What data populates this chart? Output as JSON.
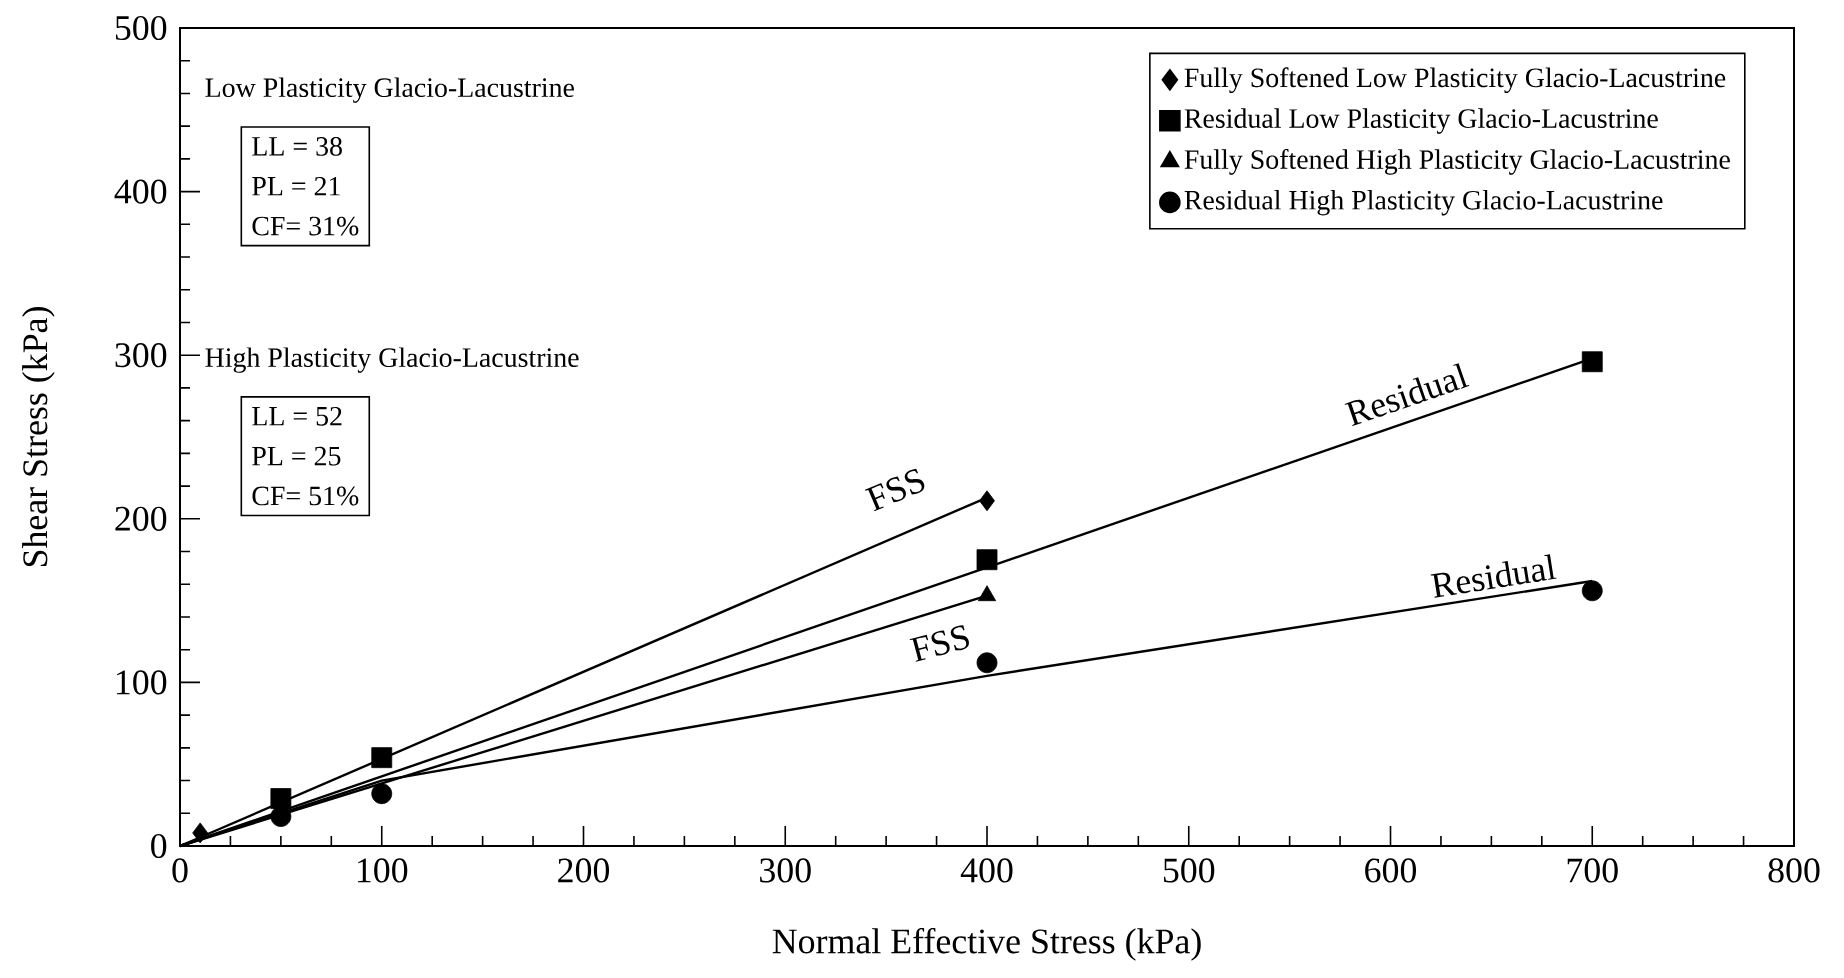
{
  "chart_data": {
    "type": "scatter",
    "xlabel": "Normal Effective Stress (kPa)",
    "ylabel": "Shear Stress (kPa)",
    "xlim": [
      0,
      800
    ],
    "ylim": [
      0,
      500
    ],
    "xticks": [
      0,
      100,
      200,
      300,
      400,
      500,
      600,
      700,
      800
    ],
    "yticks": [
      0,
      100,
      200,
      300,
      400,
      500
    ],
    "legend": "top right",
    "grid": false,
    "series": [
      {
        "type": "line",
        "marker": "none",
        "color": "#000000",
        "x": [
          0,
          400
        ],
        "values": [
          0,
          213
        ]
      },
      {
        "type": "line",
        "marker": "none",
        "color": "#000000",
        "x": [
          0,
          700
        ],
        "values": [
          0,
          298
        ]
      },
      {
        "type": "line",
        "marker": "none",
        "color": "#000000",
        "x": [
          0,
          400
        ],
        "values": [
          0,
          153
        ]
      },
      {
        "type": "line",
        "marker": "none",
        "color": "#000000",
        "x": [
          0,
          100,
          400,
          700
        ],
        "values": [
          0,
          40,
          104,
          162
        ]
      },
      {
        "name": "Fully Softened Low Plasticity Glacio-Lacustrine",
        "marker": "diamond",
        "color": "#000000",
        "x": [
          10,
          400
        ],
        "values": [
          8,
          211
        ]
      },
      {
        "name": "Residual Low Plasticity Glacio-Lacustrine",
        "marker": "square",
        "color": "#000000",
        "x": [
          50,
          100,
          400,
          700
        ],
        "values": [
          29,
          54,
          175,
          296
        ]
      },
      {
        "name": "Fully Softened High Plasticity Glacio-Lacustrine",
        "marker": "triangle",
        "color": "#000000",
        "x": [
          400
        ],
        "values": [
          153
        ]
      },
      {
        "name": "Residual High Plasticity Glacio-Lacustrine",
        "marker": "circle",
        "color": "#000000",
        "x": [
          50,
          100,
          400,
          700
        ],
        "values": [
          18,
          32,
          112,
          156
        ]
      }
    ],
    "annotations": [
      "Low Plasticity Glacio-Lacustrine",
      "LL = 38",
      "PL = 21",
      "CF= 31%",
      "High Plasticity Glacio-Lacustrine",
      "LL = 52",
      "PL = 25",
      "CF= 51%",
      "FSS",
      "Residual",
      "FSS",
      "Residual"
    ]
  }
}
